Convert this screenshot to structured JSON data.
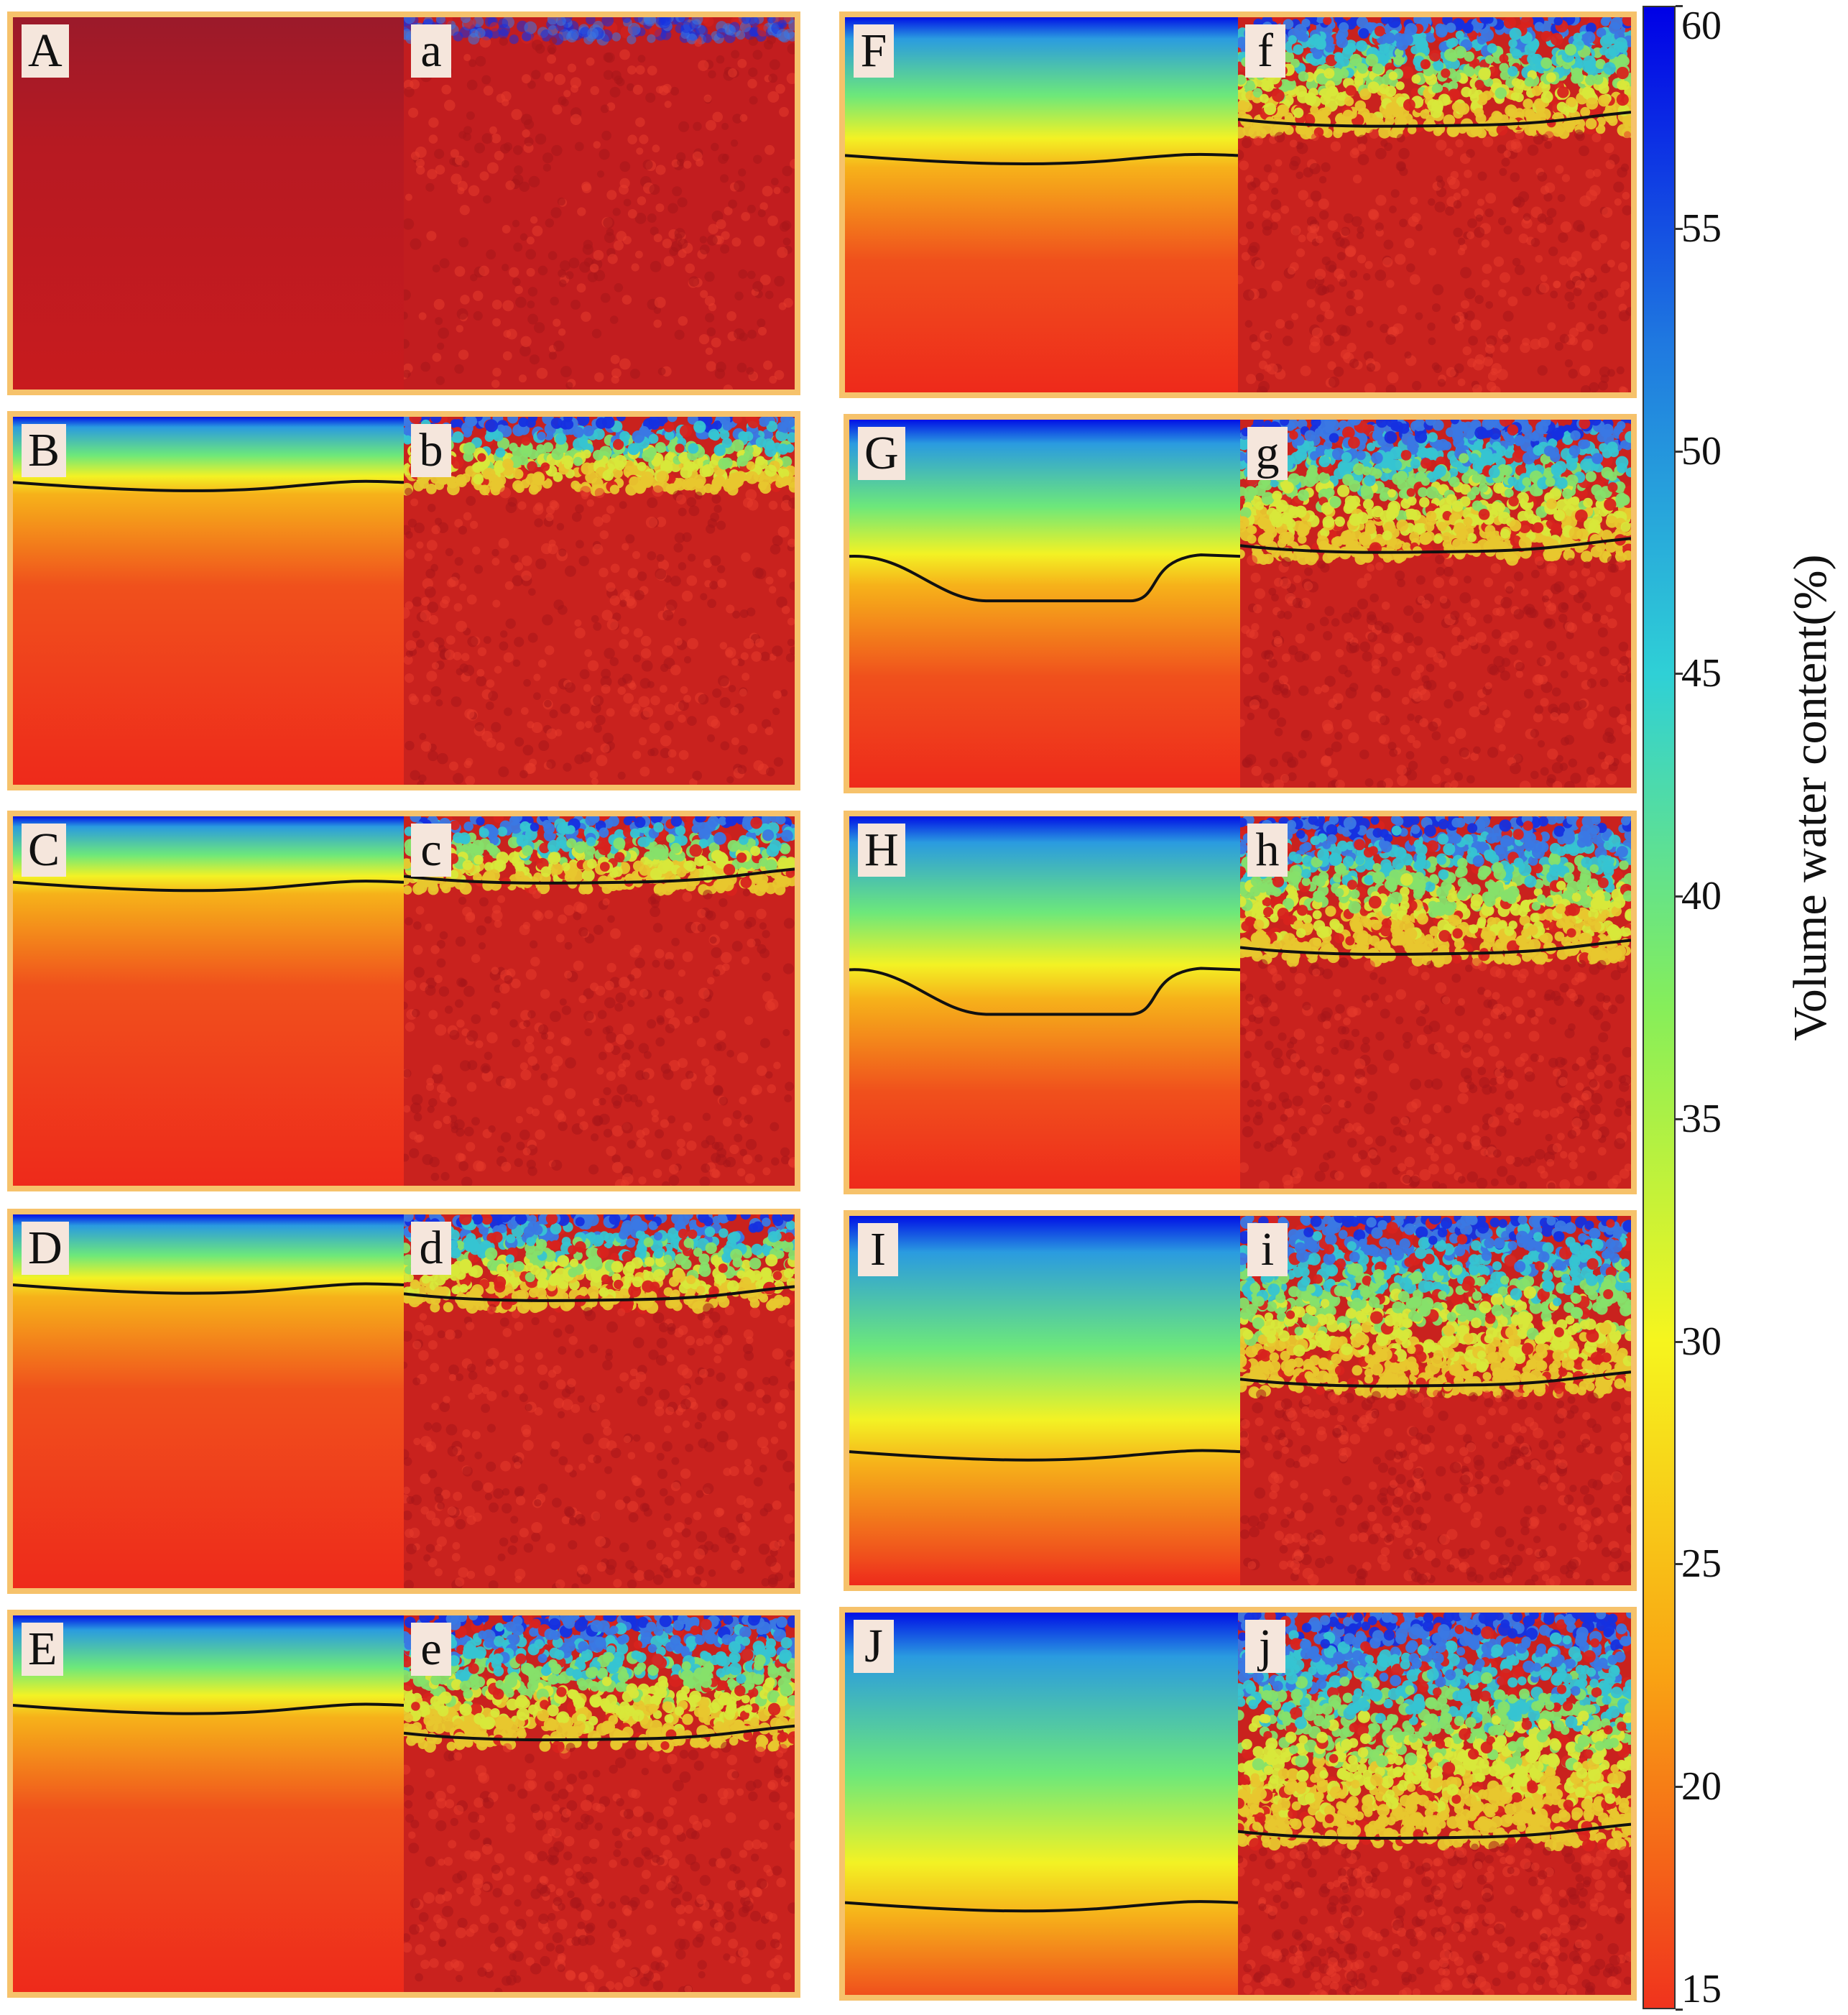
{
  "figure": {
    "colorbar": {
      "title": "Volume water content(%)",
      "min": 15,
      "max": 60,
      "ticks": [
        "60",
        "55",
        "50",
        "45",
        "40",
        "35",
        "30",
        "25",
        "20",
        "15"
      ],
      "colors": [
        "#0000e6",
        "#1f78e0",
        "#2fd0d6",
        "#86ee5a",
        "#f6f51e",
        "#f9a313",
        "#f0331d"
      ]
    },
    "panels": [
      {
        "id": "A",
        "sim_label": "A",
        "dem_label": "a",
        "wet": 0.0,
        "front_sim": null,
        "front_dem": null
      },
      {
        "id": "B",
        "sim_label": "B",
        "dem_label": "b",
        "wet": 0.6,
        "front_sim": 0.19,
        "front_dem": null
      },
      {
        "id": "C",
        "sim_label": "C",
        "dem_label": "c",
        "wet": 0.7,
        "front_sim": 0.19,
        "front_dem": 0.17
      },
      {
        "id": "D",
        "sim_label": "D",
        "dem_label": "d",
        "wet": 0.78,
        "front_sim": 0.2,
        "front_dem": 0.22
      },
      {
        "id": "E",
        "sim_label": "E",
        "dem_label": "e",
        "wet": 0.84,
        "front_sim": 0.25,
        "front_dem": 0.32
      },
      {
        "id": "F",
        "sim_label": "F",
        "dem_label": "f",
        "wet": 0.88,
        "front_sim": 0.38,
        "front_dem": 0.28
      },
      {
        "id": "G",
        "sim_label": "G",
        "dem_label": "g",
        "wet": 0.9,
        "front_sim": 0.43,
        "front_dem": 0.35
      },
      {
        "id": "H",
        "sim_label": "H",
        "dem_label": "h",
        "wet": 0.92,
        "front_sim": 0.47,
        "front_dem": 0.36
      },
      {
        "id": "I",
        "sim_label": "I",
        "dem_label": "i",
        "wet": 0.95,
        "front_sim": 0.65,
        "front_dem": 0.45
      },
      {
        "id": "J",
        "sim_label": "J",
        "dem_label": "j",
        "wet": 1.0,
        "front_sim": 0.77,
        "front_dem": 0.58
      }
    ]
  }
}
